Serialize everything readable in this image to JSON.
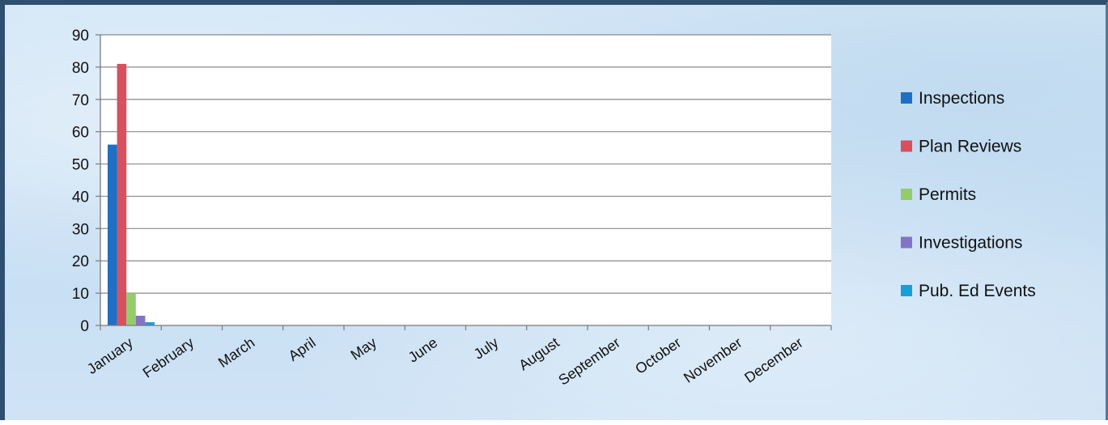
{
  "chart_data": {
    "type": "bar",
    "categories": [
      "January",
      "February",
      "March",
      "April",
      "May",
      "June",
      "July",
      "August",
      "September",
      "October",
      "November",
      "December"
    ],
    "series": [
      {
        "name": "Inspections",
        "color": "#1f6fc4",
        "values": [
          56,
          0,
          0,
          0,
          0,
          0,
          0,
          0,
          0,
          0,
          0,
          0
        ]
      },
      {
        "name": "Plan Reviews",
        "color": "#d6505e",
        "values": [
          81,
          0,
          0,
          0,
          0,
          0,
          0,
          0,
          0,
          0,
          0,
          0
        ]
      },
      {
        "name": "Permits",
        "color": "#92cc6b",
        "values": [
          10,
          0,
          0,
          0,
          0,
          0,
          0,
          0,
          0,
          0,
          0,
          0
        ]
      },
      {
        "name": "Investigations",
        "color": "#8473c4",
        "values": [
          3,
          0,
          0,
          0,
          0,
          0,
          0,
          0,
          0,
          0,
          0,
          0
        ]
      },
      {
        "name": "Pub. Ed Events",
        "color": "#1a9ed8",
        "values": [
          1,
          0,
          0,
          0,
          0,
          0,
          0,
          0,
          0,
          0,
          0,
          0
        ]
      }
    ],
    "y_ticks": [
      "0",
      "10",
      "20",
      "30",
      "40",
      "50",
      "60",
      "70",
      "80",
      "90"
    ],
    "ylim": [
      0,
      90
    ],
    "grid": true,
    "legend_position": "right"
  }
}
